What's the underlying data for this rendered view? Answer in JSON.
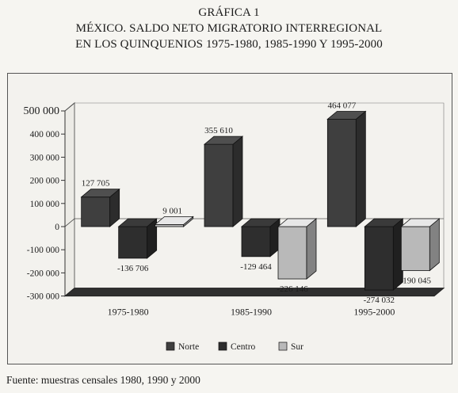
{
  "header": {
    "line1": "GRÁFICA 1",
    "line2": "MÉXICO. SALDO NETO MIGRATORIO INTERREGIONAL",
    "line3": "EN LOS QUINQUENIOS 1975-1980, 1985-1990 Y 1995-2000"
  },
  "source": "Fuente: muestras censales 1980, 1990 y 2000",
  "colors": {
    "norte": "#3f3f3f",
    "centro": "#2e2e2e",
    "sur": "#b9b9b9"
  },
  "chart_data": {
    "type": "bar",
    "title": "MÉXICO. SALDO NETO MIGRATORIO INTERREGIONAL EN LOS QUINQUENIOS 1975-1980, 1985-1990 Y 1995-2000",
    "categories": [
      "1975-1980",
      "1985-1990",
      "1995-2000"
    ],
    "series": [
      {
        "name": "Norte",
        "values": [
          127705,
          355610,
          464077
        ],
        "labels": [
          "127 705",
          "355 610",
          "464 077"
        ]
      },
      {
        "name": "Centro",
        "values": [
          -136706,
          -129464,
          -274032
        ],
        "labels": [
          "-136 706",
          "-129 464",
          "-274 032"
        ]
      },
      {
        "name": "Sur",
        "values": [
          9001,
          -226146,
          -190045
        ],
        "labels": [
          "9 001",
          "-226 146",
          "-190 045"
        ]
      }
    ],
    "ylim": [
      -300000,
      500000
    ],
    "yticks": [
      500000,
      400000,
      300000,
      200000,
      100000,
      0,
      -100000,
      -200000,
      -300000
    ],
    "ytick_labels": [
      "500 000",
      "400 000",
      "300 000",
      "200 000",
      "100 000",
      "0",
      "-100 000",
      "-200 000",
      "-300 000"
    ],
    "legend_position": "bottom",
    "grid": false
  }
}
